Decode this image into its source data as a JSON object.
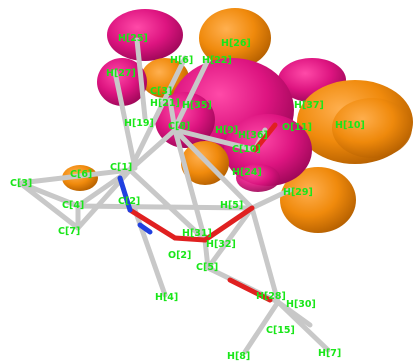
{
  "scene": {
    "background": "#ffffff",
    "colors": {
      "lobe_positive": "#ff8c00",
      "lobe_negative": "#e0117f",
      "bond_carbon": "#c8c8c8",
      "bond_oxygen": "#e02020",
      "bond_nitrogen": "#2040e0",
      "label": "#19e619"
    },
    "atom_labels": [
      "H[25]",
      "H[26]",
      "H[6]",
      "H[27]",
      "C[3]",
      "H[21]",
      "H[22]",
      "H[35]",
      "H[37]",
      "H[10]",
      "H[19]",
      "C[8]",
      "O[11]",
      "H[9]",
      "H[36]",
      "C[10]",
      "C[1]",
      "H[24]",
      "C[3]",
      "C[6]",
      "C[2]",
      "H[5]",
      "H[29]",
      "C[4]",
      "C[7]",
      "O[2]",
      "H[32]",
      "H[31]",
      "C[5]",
      "H[4]",
      "H[28]",
      "H[30]",
      "C[15]",
      "H[8]",
      "H[7]"
    ]
  }
}
